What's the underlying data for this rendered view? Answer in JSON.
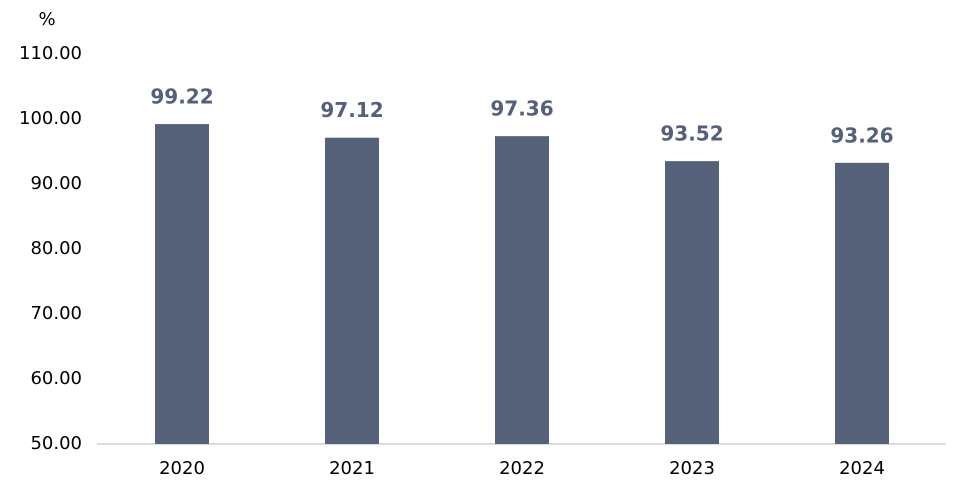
{
  "chart_data": {
    "type": "bar",
    "y_label": "%",
    "categories": [
      "2020",
      "2021",
      "2022",
      "2023",
      "2024"
    ],
    "values": [
      99.22,
      97.12,
      97.36,
      93.52,
      93.26
    ],
    "color": "#556079",
    "label_color": "#556079",
    "ylim": [
      50,
      110
    ],
    "yticks": [
      {
        "value": 50,
        "label": "50.00"
      },
      {
        "value": 60,
        "label": "60.00"
      },
      {
        "value": 70,
        "label": "70.00"
      },
      {
        "value": 80,
        "label": "80.00"
      },
      {
        "value": 90,
        "label": "90.00"
      },
      {
        "value": 100,
        "label": "100.00"
      },
      {
        "value": 110,
        "label": "110.00"
      }
    ],
    "grid": false
  }
}
